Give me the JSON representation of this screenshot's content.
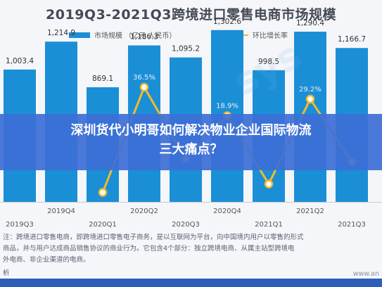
{
  "chart_data": {
    "type": "bar",
    "title": "2019Q3-2021Q3跨境进口零售电商市场规模",
    "categories": [
      "2019Q3",
      "2019Q4",
      "2020Q1",
      "2020Q2",
      "2020Q3",
      "2020Q4",
      "2021Q1",
      "2021Q2",
      "2021Q3"
    ],
    "series": [
      {
        "name": "市场规模 （亿元 人民币）",
        "type": "bar",
        "color": "#1a8fd6",
        "values": [
          1003.4,
          1214.9,
          869.1,
          1186.3,
          1095.2,
          1302.6,
          998.5,
          1290.4,
          1166.7
        ],
        "labels": [
          "1,003.4",
          "1,214.9",
          "869.1",
          "1,186.3",
          "1,095.2",
          "1,302.6",
          "998.5",
          "1,290.4",
          "1,166.7"
        ]
      },
      {
        "name": "环比增长率",
        "type": "line",
        "color": "#f5b82e",
        "values": [
          null,
          null,
          -28.5,
          36.5,
          -7.7,
          18.9,
          -23.3,
          29.2,
          -9.6
        ],
        "labels": [
          "",
          "",
          "",
          "36.5%",
          "",
          "18.9%",
          "",
          "29.2%",
          ""
        ]
      }
    ],
    "bar_ylim": [
      0,
      1500
    ],
    "line_ylim": [
      -40,
      60
    ],
    "legend_position": "top-center",
    "grid": false
  },
  "overlay": {
    "line1": "深圳货代小明哥如何解决物业企业国际物流",
    "line2": "三大痛点？"
  },
  "footnote": [
    "注：跨境进口零售电商，即跨境进口零售电子商务，是以互联网为平台，向中国境内用户以零售的形式",
    "商品，并与用户达成商品销售协议的商业行为。它包含4个部分：独立跨境电商、从属主站型跨境电",
    "外电商、非企业渠道的电商。"
  ],
  "source_label": "析",
  "watermark_url": "www.an",
  "watermark_text": "sys",
  "colors": {
    "bar": "#1a8fd6",
    "line": "#f5b82e",
    "overlay": "#3d6fd6"
  }
}
